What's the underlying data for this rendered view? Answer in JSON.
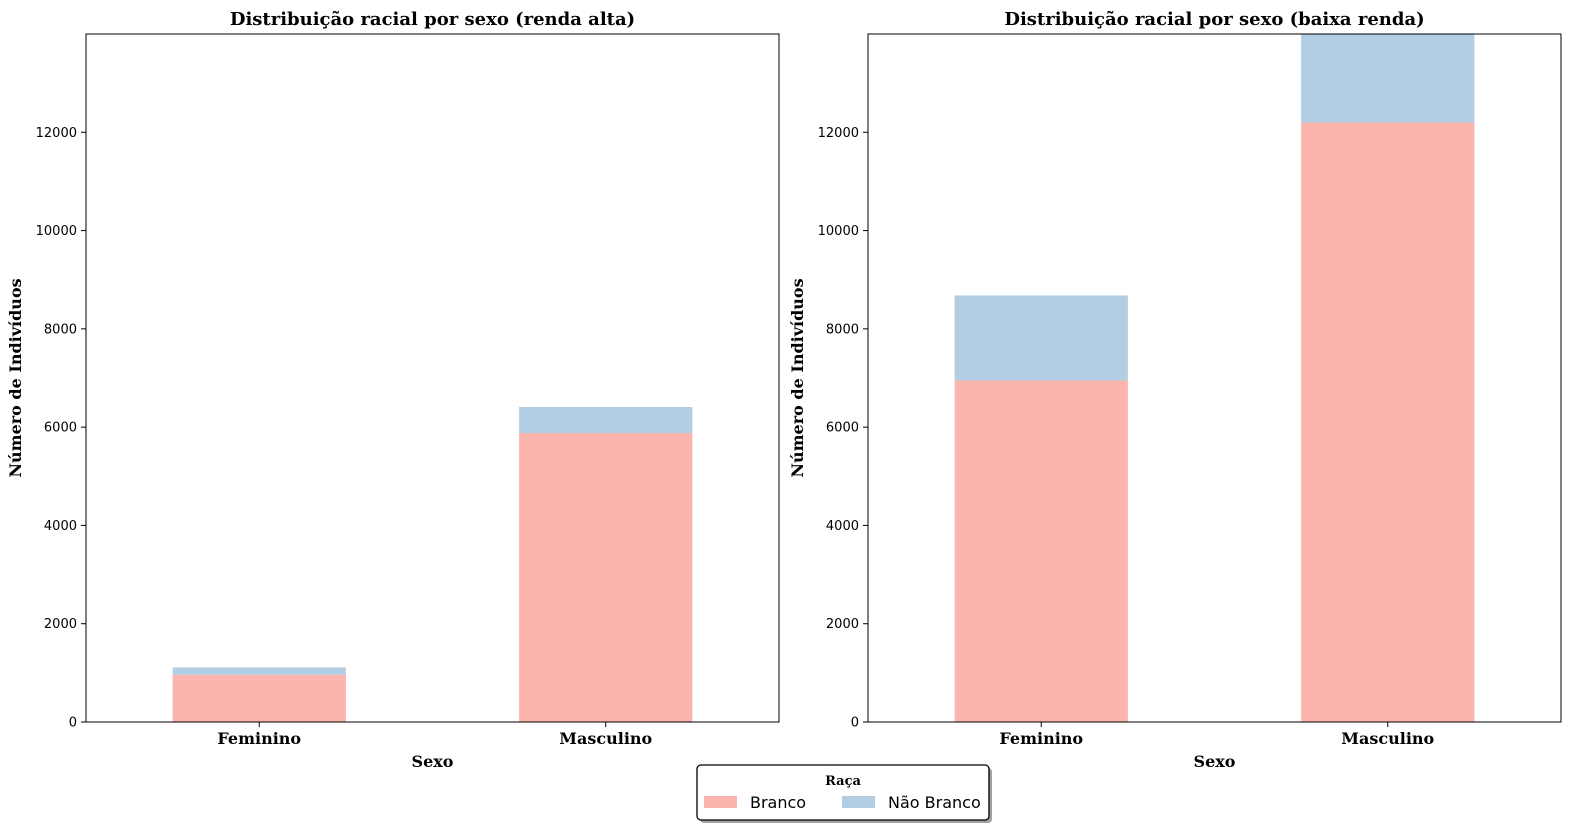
{
  "legend": {
    "title": "Raça",
    "items": [
      {
        "label": "Branco",
        "color": "#fbb4ae"
      },
      {
        "label": "Não Branco",
        "color": "#b3cde3"
      }
    ]
  },
  "chart_data": [
    {
      "type": "bar",
      "stacked": true,
      "title": "Distribuição racial por sexo (renda alta)",
      "xlabel": "Sexo",
      "ylabel": "Número de Indivíduos",
      "categories": [
        "Feminino",
        "Masculino"
      ],
      "series": [
        {
          "name": "Branco",
          "values": [
            960,
            5880
          ]
        },
        {
          "name": "Não Branco",
          "values": [
            150,
            530
          ]
        }
      ],
      "ylim": [
        0,
        14000
      ],
      "yticks": [
        0,
        2000,
        4000,
        6000,
        8000,
        10000,
        12000
      ],
      "grid": false,
      "legend_position": "bottom-center"
    },
    {
      "type": "bar",
      "stacked": true,
      "title": "Distribuição racial por sexo (baixa renda)",
      "xlabel": "Sexo",
      "ylabel": "Número de Indivíduos",
      "categories": [
        "Feminino",
        "Masculino"
      ],
      "series": [
        {
          "name": "Branco",
          "values": [
            6950,
            12200
          ]
        },
        {
          "name": "Não Branco",
          "values": [
            1730,
            1800
          ]
        }
      ],
      "ylim": [
        0,
        14000
      ],
      "yticks": [
        0,
        2000,
        4000,
        6000,
        8000,
        10000,
        12000
      ],
      "grid": false,
      "legend_position": "bottom-center"
    }
  ]
}
